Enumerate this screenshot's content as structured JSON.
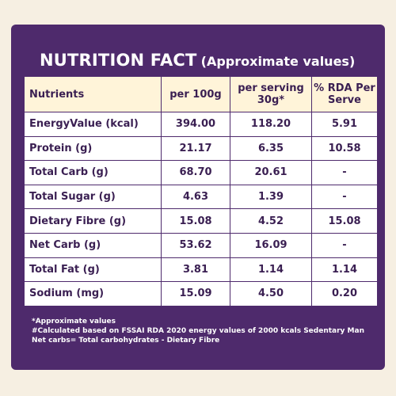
{
  "title": {
    "main": "NUTRITION FACT",
    "sub": "(Approximate values)"
  },
  "table": {
    "headers": [
      "Nutrients",
      "per 100g",
      "per serving 30g*",
      "% RDA Per Serve"
    ],
    "rows": [
      {
        "label": "EnergyValue (kcal)",
        "per100": "394.00",
        "serving": "118.20",
        "rda": "5.91"
      },
      {
        "label": "Protein (g)",
        "per100": "21.17",
        "serving": "6.35",
        "rda": "10.58"
      },
      {
        "label": "Total Carb (g)",
        "per100": "68.70",
        "serving": "20.61",
        "rda": "-"
      },
      {
        "label": "Total Sugar (g)",
        "per100": "4.63",
        "serving": "1.39",
        "rda": "-"
      },
      {
        "label": "Dietary Fibre (g)",
        "per100": "15.08",
        "serving": "4.52",
        "rda": "15.08"
      },
      {
        "label": "Net Carb (g)",
        "per100": "53.62",
        "serving": "16.09",
        "rda": "-"
      },
      {
        "label": "Total Fat (g)",
        "per100": "3.81",
        "serving": "1.14",
        "rda": "1.14"
      },
      {
        "label": "Sodium (mg)",
        "per100": "15.09",
        "serving": "4.50",
        "rda": "0.20"
      }
    ]
  },
  "notes": [
    "*Approximate values",
    "#Calculated based on FSSAI RDA 2020 energy values of 2000 kcals Sedentary Man",
    "Net carbs= Total carbohydrates - Dietary Fibre"
  ],
  "colors": {
    "panel": "#4e2a6c",
    "header_bg": "#fff4d9",
    "text": "#3a1f52",
    "background": "#f6efe2"
  }
}
